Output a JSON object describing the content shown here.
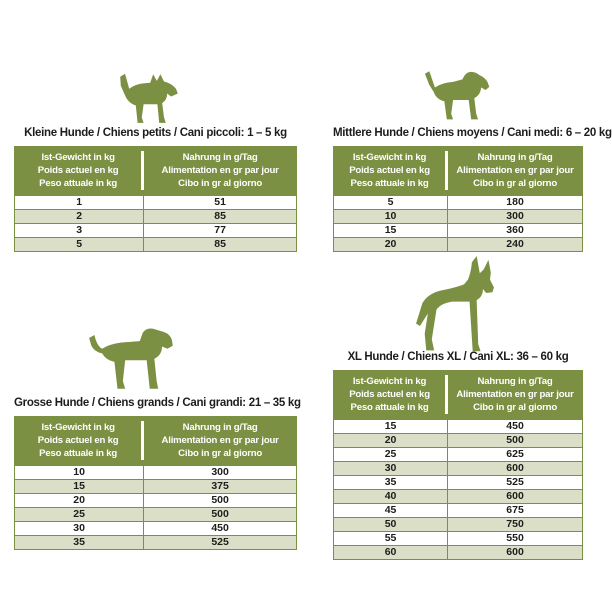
{
  "colors": {
    "green": "#7C9044",
    "row_alt": "#DCDFC8",
    "header_text": "#FFFFFF",
    "title_text": "#1D1D1B",
    "background": "#FFFFFF"
  },
  "icons": [
    "small-dog-icon",
    "medium-dog-icon",
    "large-dog-icon",
    "xl-dog-icon"
  ],
  "column_headers": {
    "weight": [
      "Ist-Gewicht in kg",
      "Poids actuel en kg",
      "Peso attuale in kg"
    ],
    "food": [
      "Nahrung in g/Tag",
      "Alimentation en gr par jour",
      "Cibo in gr al giorno"
    ]
  },
  "chart_data": [
    {
      "type": "table",
      "title": "Kleine Hunde / Chiens petits / Cani piccoli: 1 – 5 kg",
      "rows": [
        [
          "1",
          "51"
        ],
        [
          "2",
          "85"
        ],
        [
          "3",
          "77"
        ],
        [
          "5",
          "85"
        ]
      ]
    },
    {
      "type": "table",
      "title": "Mittlere Hunde / Chiens moyens / Cani medi: 6 – 20 kg",
      "rows": [
        [
          "5",
          "180"
        ],
        [
          "10",
          "300"
        ],
        [
          "15",
          "360"
        ],
        [
          "20",
          "240"
        ]
      ]
    },
    {
      "type": "table",
      "title": "Grosse Hunde / Chiens grands / Cani grandi: 21 – 35 kg",
      "rows": [
        [
          "10",
          "300"
        ],
        [
          "15",
          "375"
        ],
        [
          "20",
          "500"
        ],
        [
          "25",
          "500"
        ],
        [
          "30",
          "450"
        ],
        [
          "35",
          "525"
        ]
      ]
    },
    {
      "type": "table",
      "title": "XL Hunde / Chiens XL / Cani XL: 36 – 60 kg",
      "rows": [
        [
          "15",
          "450"
        ],
        [
          "20",
          "500"
        ],
        [
          "25",
          "625"
        ],
        [
          "30",
          "600"
        ],
        [
          "35",
          "525"
        ],
        [
          "40",
          "600"
        ],
        [
          "45",
          "675"
        ],
        [
          "50",
          "750"
        ],
        [
          "55",
          "550"
        ],
        [
          "60",
          "600"
        ]
      ]
    }
  ]
}
